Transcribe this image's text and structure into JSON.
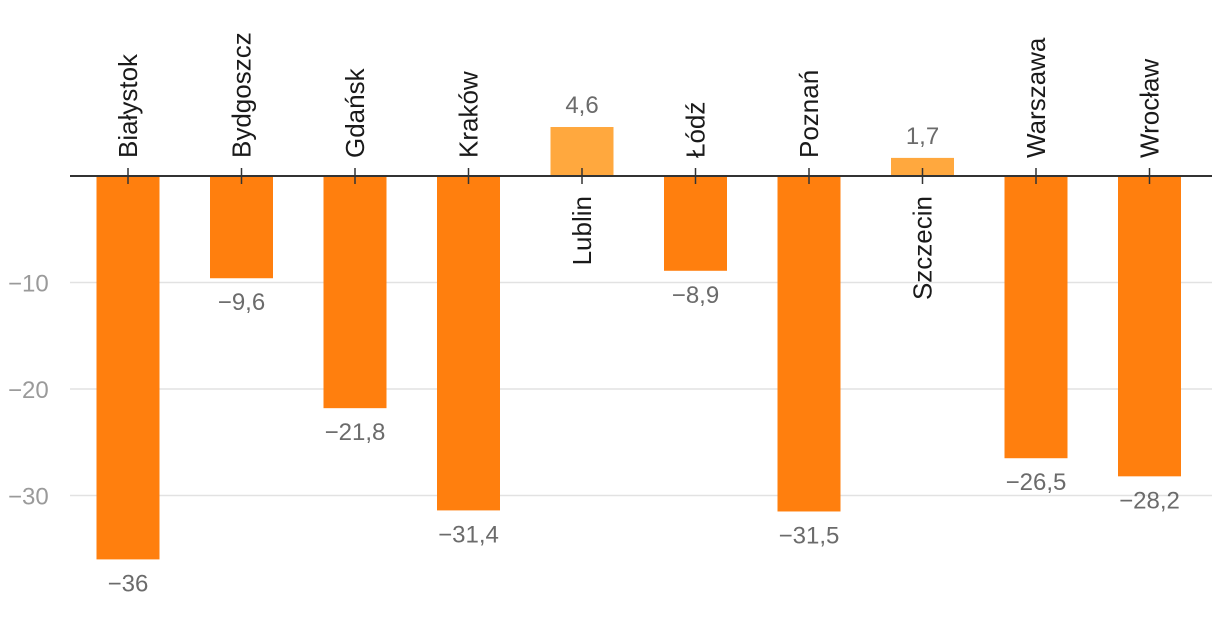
{
  "chart_data": {
    "type": "bar",
    "categories": [
      "Białystok",
      "Bydgoszcz",
      "Gdańsk",
      "Kraków",
      "Lublin",
      "Łódź",
      "Poznań",
      "Szczecin",
      "Warszawa",
      "Wrocław"
    ],
    "values": [
      -36,
      -9.6,
      -21.8,
      -31.4,
      4.6,
      -8.9,
      -31.5,
      1.7,
      -26.5,
      -28.2
    ],
    "value_labels": [
      "−36",
      "−9,6",
      "−21,8",
      "−31,4",
      "4,6",
      "−8,9",
      "−31,5",
      "1,7",
      "−26,5",
      "−28,2"
    ],
    "y_ticks": [
      -10,
      -20,
      -30
    ],
    "y_tick_labels": [
      "−10",
      "−20",
      "−30"
    ],
    "ylim": [
      -38,
      8
    ],
    "grid": true,
    "colors": {
      "negative": "#ff7f0e",
      "positive": "#ffa83e"
    },
    "title": "",
    "xlabel": "",
    "ylabel": ""
  }
}
